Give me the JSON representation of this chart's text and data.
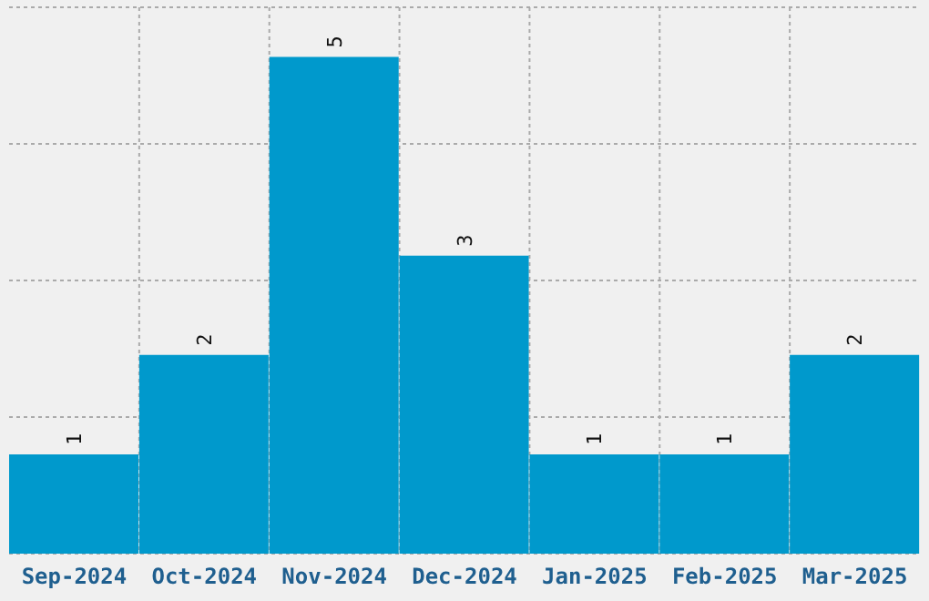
{
  "chart_data": {
    "type": "bar",
    "categories": [
      "Sep-2024",
      "Oct-2024",
      "Nov-2024",
      "Dec-2024",
      "Jan-2025",
      "Feb-2025",
      "Mar-2025"
    ],
    "values": [
      1,
      2,
      5,
      3,
      1,
      1,
      2
    ],
    "color": "#0099cc",
    "data_labels": true,
    "ylim": [
      0,
      5.5
    ],
    "yticks": [
      {
        "value": 1.375,
        "label": null
      },
      {
        "value": 2.75,
        "label": null
      },
      {
        "value": 4.125,
        "label": null
      }
    ],
    "tick_labels": "x",
    "grid": true
  }
}
